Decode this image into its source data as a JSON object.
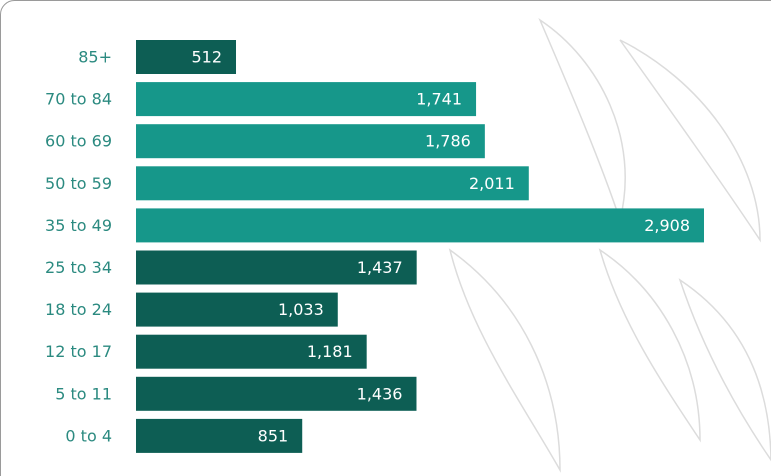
{
  "chart_data": {
    "type": "bar",
    "categories": [
      "85+",
      "70 to 84",
      "60 to 69",
      "50 to 59",
      "35 to 49",
      "25 to 34",
      "18 to 24",
      "12 to 17",
      "5 to 11",
      "0 to 4"
    ],
    "values": [
      512,
      1741,
      1786,
      2011,
      2908,
      1437,
      1033,
      1181,
      1436,
      851
    ],
    "value_labels": [
      "512",
      "1,741",
      "1,786",
      "2,011",
      "2,908",
      "1,437",
      "1,033",
      "1,181",
      "1,436",
      "851"
    ],
    "colors": [
      "#0d5e54",
      "#16978a",
      "#16978a",
      "#16978a",
      "#16978a",
      "#0d5e54",
      "#0d5e54",
      "#0d5e54",
      "#0d5e54",
      "#0d5e54"
    ]
  }
}
